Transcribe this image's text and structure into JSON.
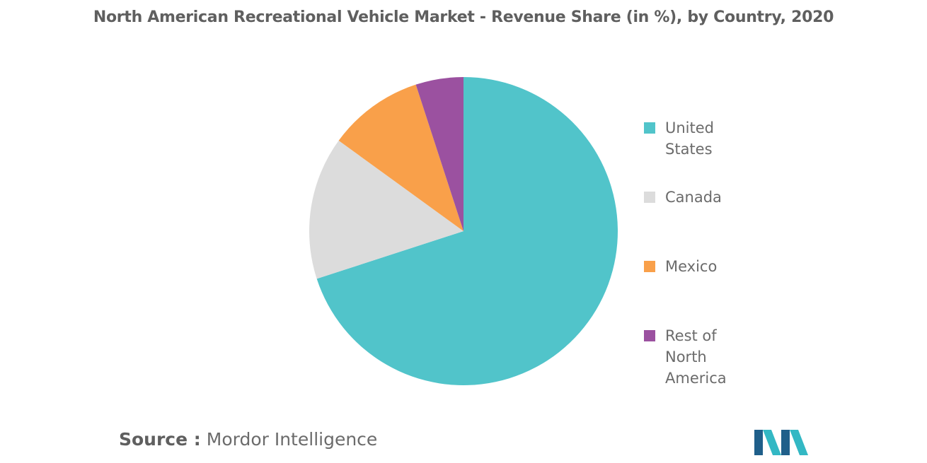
{
  "chart_data": {
    "type": "pie",
    "title": "North American Recreational Vehicle Market - Revenue Share (in %), by Country, 2020",
    "categories": [
      "United States",
      "Canada",
      "Mexico",
      "Rest of North America"
    ],
    "values": [
      70,
      15,
      10,
      5
    ],
    "colors": [
      "#51c4ca",
      "#dcdcdc",
      "#f9a04a",
      "#9b51a0"
    ],
    "legend_position": "right",
    "start_angle": "12 o'clock",
    "direction": "clockwise"
  },
  "legend": {
    "items": [
      {
        "label": "United States",
        "color": "#51c4ca"
      },
      {
        "label": "Canada",
        "color": "#dcdcdc"
      },
      {
        "label": "Mexico",
        "color": "#f9a04a"
      },
      {
        "label": "Rest of North America",
        "color": "#9b51a0"
      }
    ]
  },
  "source": {
    "label": "Source :",
    "text": "Mordor Intelligence"
  },
  "logo": {
    "icon": "mordor-intelligence-logo-icon",
    "colors": [
      "#1f5f8a",
      "#33b8c4"
    ]
  }
}
